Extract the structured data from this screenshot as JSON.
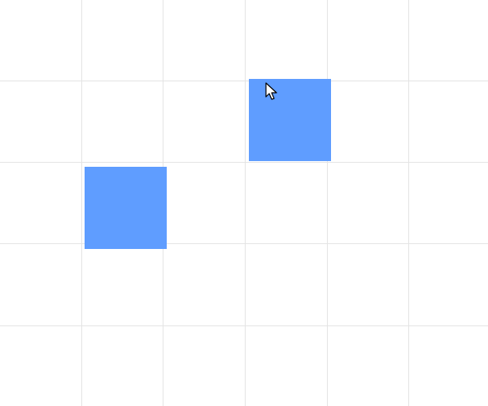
{
  "canvas": {
    "background": "#ffffff",
    "grid_color": "#e4e4e4",
    "grid_columns": 6,
    "grid_rows": 5
  },
  "blocks": [
    {
      "name": "blue-square",
      "color": "#5f9dff"
    },
    {
      "name": "blue-square",
      "color": "#5f9dff"
    }
  ],
  "cursor": {
    "icon": "arrow-cursor-icon"
  }
}
